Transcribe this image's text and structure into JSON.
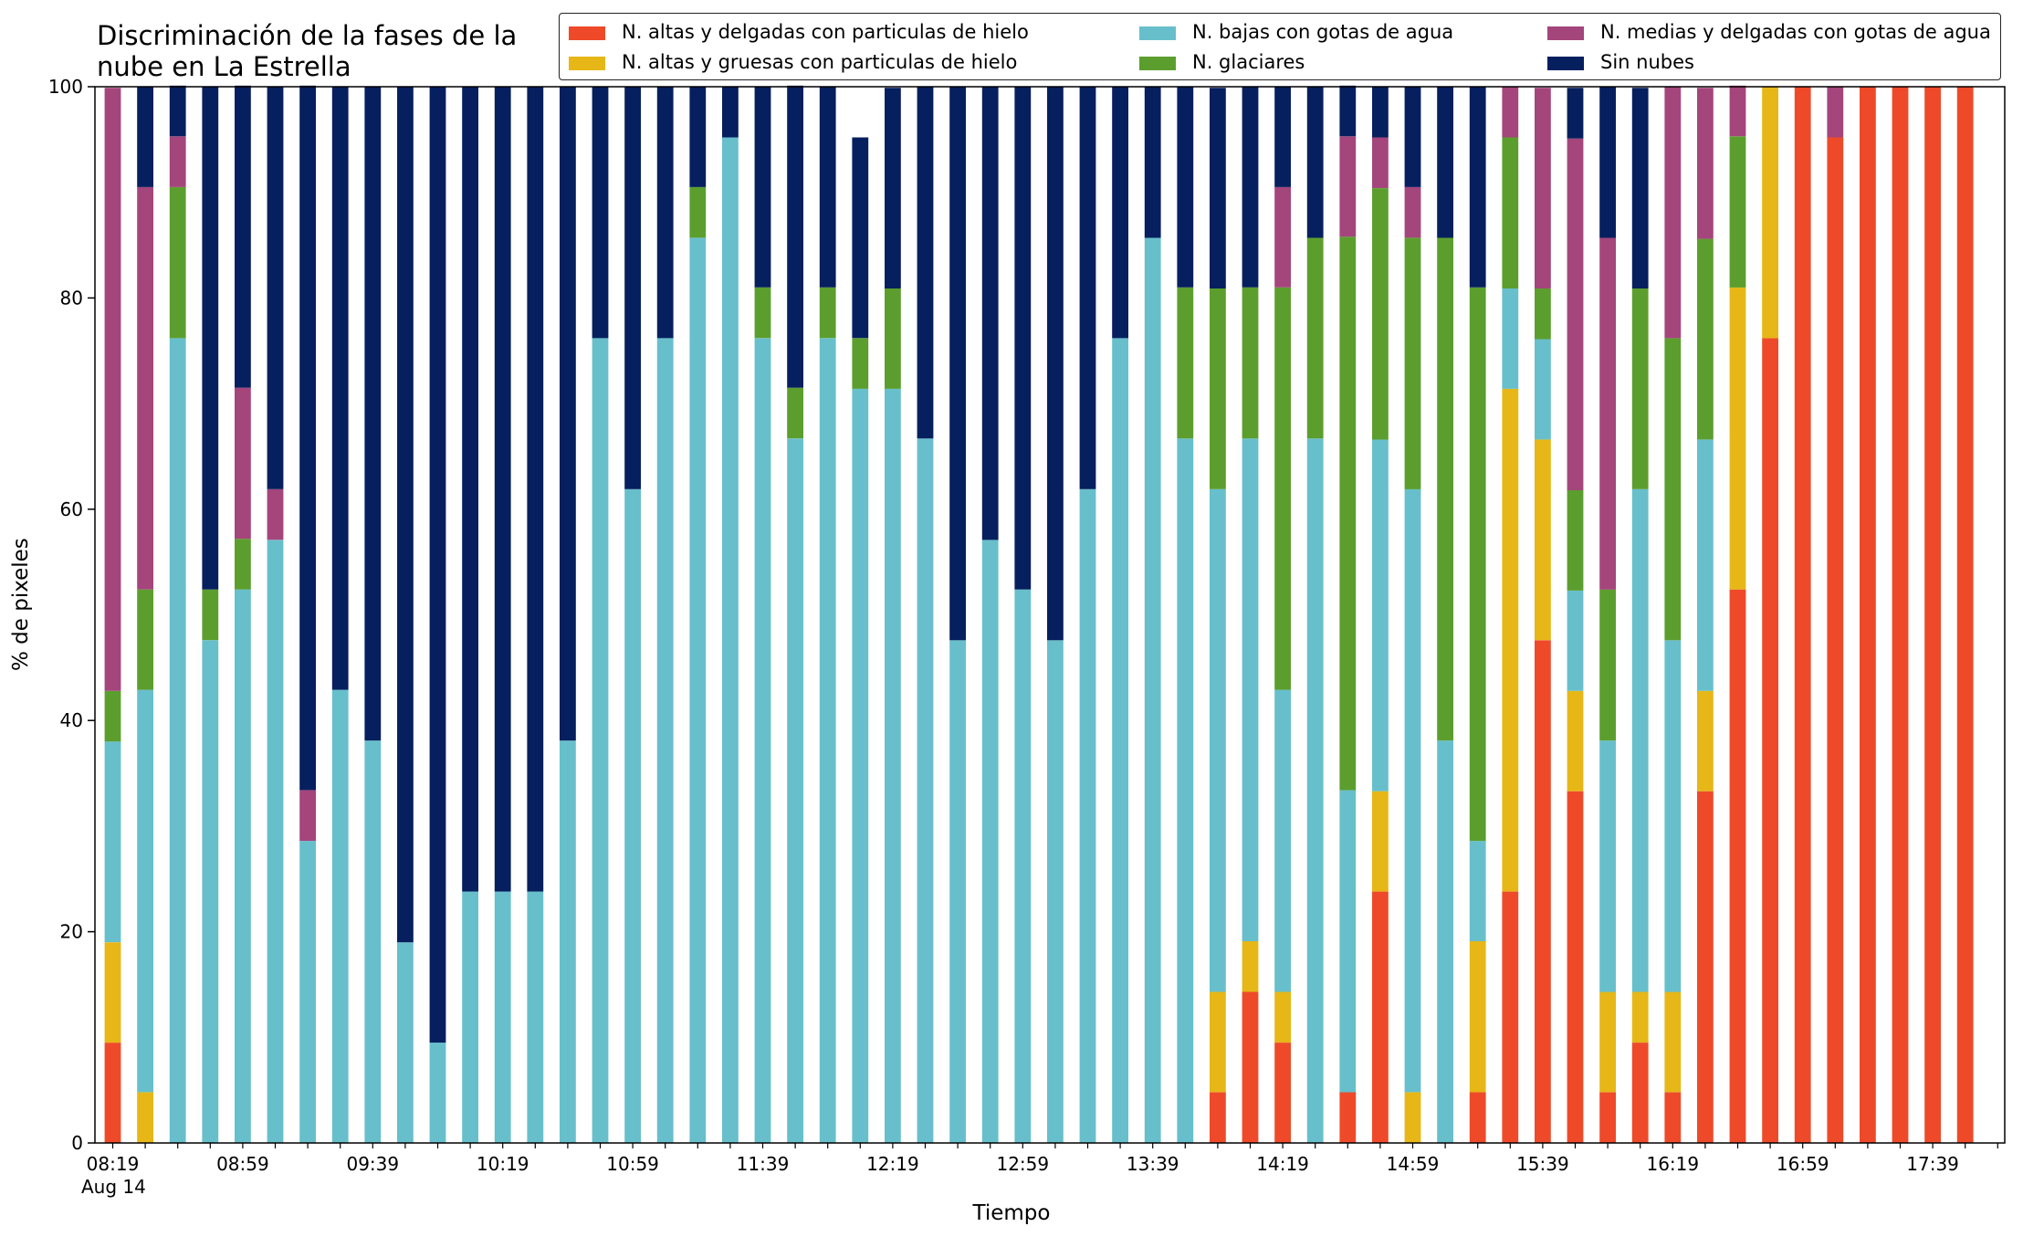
{
  "chart_data": {
    "type": "bar",
    "stacked": true,
    "title": "Discriminación de la fases de la\nnube en La Estrella",
    "xlabel": "Tiempo",
    "ylabel": "% de pixeles",
    "ylim": [
      0,
      100
    ],
    "yticks": [
      0,
      20,
      40,
      60,
      80,
      100
    ],
    "xtick_labels": [
      "08:19",
      "08:59",
      "09:39",
      "10:19",
      "10:59",
      "11:39",
      "12:19",
      "12:59",
      "13:39",
      "14:19",
      "14:59",
      "15:39",
      "16:19",
      "16:59",
      "17:39"
    ],
    "date_sublabel": "Aug 14",
    "categories": [
      "08:19",
      "08:29",
      "08:39",
      "08:49",
      "08:59",
      "09:09",
      "09:19",
      "09:29",
      "09:39",
      "09:49",
      "09:59",
      "10:09",
      "10:19",
      "10:29",
      "10:39",
      "10:49",
      "10:59",
      "11:09",
      "11:19",
      "11:29",
      "11:39",
      "11:49",
      "11:59",
      "12:09",
      "12:19",
      "12:29",
      "12:39",
      "12:49",
      "12:59",
      "13:09",
      "13:19",
      "13:29",
      "13:39",
      "13:49",
      "13:59",
      "14:09",
      "14:19",
      "14:29",
      "14:39",
      "14:49",
      "14:59",
      "15:09",
      "15:19",
      "15:29",
      "15:39",
      "15:49",
      "15:59",
      "16:09",
      "16:19",
      "16:29",
      "16:39",
      "16:49",
      "16:59",
      "17:09",
      "17:19",
      "17:29",
      "17:39",
      "17:49"
    ],
    "legend_position": "top-right",
    "series": [
      {
        "name": "N. altas y delgadas con particulas de hielo",
        "color": "#ee4a29",
        "values": [
          9.5,
          0,
          0,
          0,
          0,
          0,
          0,
          0,
          0,
          0,
          0,
          0,
          0,
          0,
          0,
          0,
          0,
          0,
          0,
          0,
          0,
          0,
          0,
          0,
          0,
          0,
          0,
          0,
          0,
          0,
          0,
          0,
          0,
          0,
          4.8,
          14.3,
          9.5,
          0,
          4.8,
          23.8,
          0,
          0,
          4.8,
          23.8,
          47.6,
          33.3,
          4.8,
          9.5,
          4.8,
          33.3,
          52.4,
          76.2,
          100,
          95.2,
          100,
          100,
          100,
          100
        ]
      },
      {
        "name": "N. altas y gruesas con particulas de hielo",
        "color": "#e6b717",
        "values": [
          9.5,
          4.8,
          0,
          0,
          0,
          0,
          0,
          0,
          0,
          0,
          0,
          0,
          0,
          0,
          0,
          0,
          0,
          0,
          0,
          0,
          0,
          0,
          0,
          0,
          0,
          0,
          0,
          0,
          0,
          0,
          0,
          0,
          0,
          0,
          9.5,
          4.8,
          4.8,
          0,
          0,
          9.5,
          4.8,
          0,
          14.3,
          47.6,
          19.0,
          9.5,
          9.5,
          4.8,
          9.5,
          9.5,
          28.6,
          23.8,
          0,
          0,
          0,
          0,
          0,
          0
        ]
      },
      {
        "name": "N. bajas con gotas de agua",
        "color": "#67bfcb",
        "values": [
          19.0,
          38.1,
          76.2,
          47.6,
          52.4,
          57.1,
          28.6,
          42.9,
          38.1,
          19.0,
          9.5,
          23.8,
          23.8,
          23.8,
          38.1,
          76.2,
          61.9,
          76.2,
          85.7,
          95.2,
          76.2,
          66.7,
          76.2,
          71.4,
          71.4,
          66.7,
          47.6,
          57.1,
          52.4,
          47.6,
          61.9,
          76.2,
          85.7,
          66.7,
          47.6,
          47.6,
          28.6,
          66.7,
          28.6,
          33.3,
          57.1,
          38.1,
          9.5,
          9.5,
          9.5,
          9.5,
          23.8,
          47.6,
          33.3,
          23.8,
          0,
          0,
          0,
          0,
          0,
          0,
          0,
          0
        ]
      },
      {
        "name": "N. glaciares",
        "color": "#5c9e2e",
        "values": [
          4.8,
          9.5,
          14.3,
          4.8,
          4.8,
          0,
          0,
          0,
          0,
          0,
          0,
          0,
          0,
          0,
          0,
          0,
          0,
          0,
          4.8,
          0,
          4.8,
          4.8,
          4.8,
          4.8,
          9.5,
          0,
          0,
          0,
          0,
          0,
          0,
          0,
          0,
          14.3,
          19.0,
          14.3,
          38.1,
          19.0,
          52.4,
          23.8,
          23.8,
          47.6,
          52.4,
          14.3,
          4.8,
          9.5,
          14.3,
          19.0,
          28.6,
          19.0,
          14.3,
          0,
          0,
          0,
          0,
          0,
          0,
          0
        ]
      },
      {
        "name": "N. medias y delgadas con gotas de agua",
        "color": "#a4457c",
        "values": [
          57.1,
          38.1,
          4.8,
          0,
          14.3,
          4.8,
          4.8,
          0,
          0,
          0,
          0,
          0,
          0,
          0,
          0,
          0,
          0,
          0,
          0,
          0,
          0,
          0,
          0,
          0,
          0,
          0,
          0,
          0,
          0,
          0,
          0,
          0,
          0,
          0,
          0,
          0,
          9.5,
          0,
          9.5,
          4.8,
          4.8,
          0,
          0,
          4.8,
          19.0,
          33.3,
          33.3,
          0,
          23.8,
          14.3,
          4.8,
          0,
          0,
          4.8,
          0,
          0,
          0,
          0
        ]
      },
      {
        "name": "Sin nubes",
        "color": "#061f5e",
        "values": [
          0,
          9.5,
          4.8,
          47.6,
          28.6,
          38.1,
          66.7,
          57.1,
          61.9,
          81.0,
          90.5,
          76.2,
          76.2,
          76.2,
          61.9,
          23.8,
          38.1,
          23.8,
          9.5,
          4.8,
          19.0,
          28.6,
          19.0,
          19.0,
          19.0,
          33.3,
          52.4,
          42.9,
          47.6,
          52.4,
          38.1,
          23.8,
          14.3,
          19.0,
          19.0,
          19.0,
          9.5,
          14.3,
          4.8,
          4.8,
          9.5,
          14.3,
          19.0,
          0,
          0,
          4.8,
          14.3,
          19.0,
          0,
          0,
          0,
          0,
          0,
          0,
          0,
          0,
          0,
          0
        ]
      }
    ]
  }
}
